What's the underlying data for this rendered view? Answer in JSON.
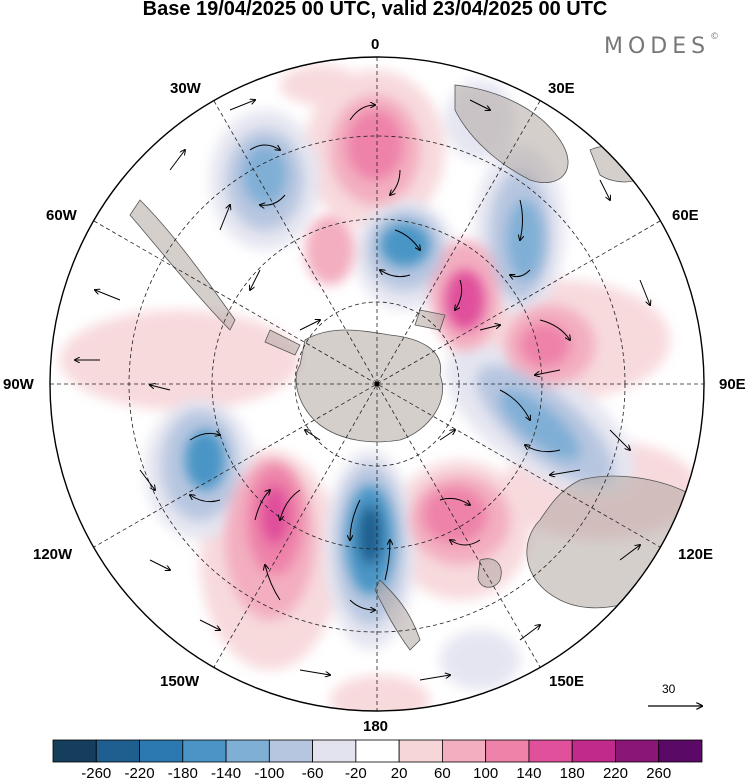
{
  "header": {
    "title": "Base 19/04/2025 00 UTC, valid 23/04/2025 00 UTC",
    "brand": "MODES",
    "brand_mark": "©"
  },
  "map": {
    "projection": "south-polar-stereographic",
    "longitude_labels": {
      "top": "0",
      "top_right": "30E",
      "upper_right": "60E",
      "right": "90E",
      "lower_right": "120E",
      "bottom_right": "150E",
      "bottom": "180",
      "bottom_left": "150W",
      "lower_left": "120W",
      "left": "90W",
      "upper_left": "60W",
      "top_left": "30W"
    },
    "reference_vector_label": "30",
    "colors": {
      "land": "#b3a8a2",
      "background": "#ffffff",
      "coast": "#555555",
      "grid": "#222222"
    }
  },
  "colorbar": {
    "ticks": [
      "-260",
      "-220",
      "-180",
      "-140",
      "-100",
      "-60",
      "-20",
      "20",
      "60",
      "100",
      "140",
      "180",
      "220",
      "260"
    ],
    "colors": [
      "#143e5c",
      "#1f5f8f",
      "#2b79b0",
      "#4a95c6",
      "#80afd6",
      "#b7c6e0",
      "#e2e3ef",
      "#ffffff",
      "#f7d6d9",
      "#f3aec0",
      "#ee82a9",
      "#e0509b",
      "#c02a8a",
      "#8a1778",
      "#5a0a66"
    ]
  }
}
